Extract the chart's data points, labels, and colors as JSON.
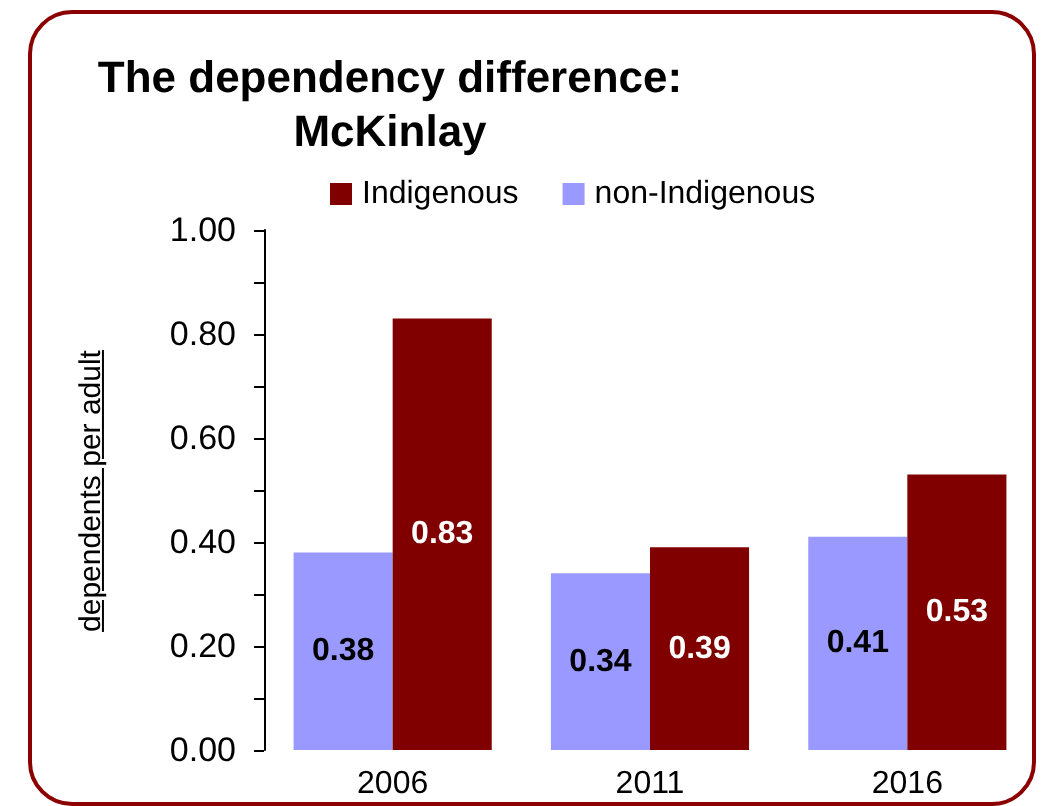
{
  "chart_data": {
    "type": "bar",
    "title": "The dependency difference:\nMcKinlay",
    "ylabel": "dependents per adult",
    "categories": [
      "2006",
      "2011",
      "2016"
    ],
    "series": [
      {
        "name": "non-Indigenous",
        "color": "#9999ff",
        "values": [
          0.38,
          0.34,
          0.41
        ]
      },
      {
        "name": "Indigenous",
        "color": "#800000",
        "values": [
          0.83,
          0.39,
          0.53
        ]
      }
    ],
    "ylim": [
      0,
      1
    ],
    "yticks": [
      {
        "value": 0,
        "label": "0.00"
      },
      {
        "value": 0.1,
        "label": null
      },
      {
        "value": 0.2,
        "label": "0.20"
      },
      {
        "value": 0.3,
        "label": null
      },
      {
        "value": 0.4,
        "label": "0.40"
      },
      {
        "value": 0.5,
        "label": null
      },
      {
        "value": 0.6,
        "label": "0.60"
      },
      {
        "value": 0.7,
        "label": null
      },
      {
        "value": 0.8,
        "label": "0.80"
      },
      {
        "value": 0.9,
        "label": null
      },
      {
        "value": 1,
        "label": "1.00"
      }
    ],
    "grid": false,
    "legend": "top",
    "data_labels": true
  }
}
